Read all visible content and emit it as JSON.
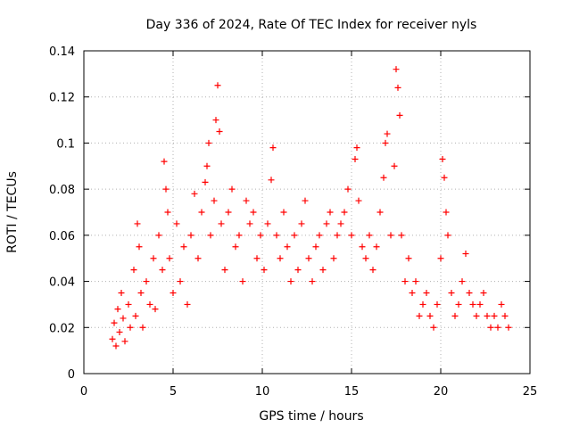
{
  "chart_data": {
    "type": "scatter",
    "title": "Day 336 of 2024, Rate Of TEC Index for receiver nyls",
    "xlabel": "GPS time / hours",
    "ylabel": "ROTI / TECUs",
    "xlim": [
      0,
      25
    ],
    "ylim": [
      0,
      0.14
    ],
    "xticks": [
      0,
      5,
      10,
      15,
      20,
      25
    ],
    "yticks": [
      0,
      0.02,
      0.04,
      0.06,
      0.08,
      0.1,
      0.12,
      0.14
    ],
    "xtick_labels": [
      "0",
      "5",
      "10",
      "15",
      "20",
      "25"
    ],
    "ytick_labels": [
      "0",
      "0.02",
      "0.04",
      "0.06",
      "0.08",
      "0.1",
      "0.12",
      "0.14"
    ],
    "grid": true,
    "marker": "+",
    "marker_color": "#ff0000",
    "series": [
      {
        "points": [
          [
            1.6,
            0.015
          ],
          [
            1.7,
            0.022
          ],
          [
            1.8,
            0.012
          ],
          [
            1.9,
            0.028
          ],
          [
            2.0,
            0.018
          ],
          [
            2.1,
            0.035
          ],
          [
            2.2,
            0.024
          ],
          [
            2.3,
            0.014
          ],
          [
            2.5,
            0.03
          ],
          [
            2.6,
            0.02
          ],
          [
            2.8,
            0.045
          ],
          [
            2.9,
            0.025
          ],
          [
            3.0,
            0.065
          ],
          [
            3.1,
            0.055
          ],
          [
            3.2,
            0.035
          ],
          [
            3.3,
            0.02
          ],
          [
            3.5,
            0.04
          ],
          [
            3.7,
            0.03
          ],
          [
            3.9,
            0.05
          ],
          [
            4.0,
            0.028
          ],
          [
            4.2,
            0.06
          ],
          [
            4.4,
            0.045
          ],
          [
            4.5,
            0.092
          ],
          [
            4.6,
            0.08
          ],
          [
            4.7,
            0.07
          ],
          [
            4.8,
            0.05
          ],
          [
            5.0,
            0.035
          ],
          [
            5.2,
            0.065
          ],
          [
            5.4,
            0.04
          ],
          [
            5.6,
            0.055
          ],
          [
            5.8,
            0.03
          ],
          [
            6.0,
            0.06
          ],
          [
            6.2,
            0.078
          ],
          [
            6.4,
            0.05
          ],
          [
            6.6,
            0.07
          ],
          [
            6.8,
            0.083
          ],
          [
            6.9,
            0.09
          ],
          [
            7.0,
            0.1
          ],
          [
            7.1,
            0.06
          ],
          [
            7.3,
            0.075
          ],
          [
            7.4,
            0.11
          ],
          [
            7.5,
            0.125
          ],
          [
            7.6,
            0.105
          ],
          [
            7.7,
            0.065
          ],
          [
            7.9,
            0.045
          ],
          [
            8.1,
            0.07
          ],
          [
            8.3,
            0.08
          ],
          [
            8.5,
            0.055
          ],
          [
            8.7,
            0.06
          ],
          [
            8.9,
            0.04
          ],
          [
            9.1,
            0.075
          ],
          [
            9.3,
            0.065
          ],
          [
            9.5,
            0.07
          ],
          [
            9.7,
            0.05
          ],
          [
            9.9,
            0.06
          ],
          [
            10.1,
            0.045
          ],
          [
            10.3,
            0.065
          ],
          [
            10.5,
            0.084
          ],
          [
            10.6,
            0.098
          ],
          [
            10.8,
            0.06
          ],
          [
            11.0,
            0.05
          ],
          [
            11.2,
            0.07
          ],
          [
            11.4,
            0.055
          ],
          [
            11.6,
            0.04
          ],
          [
            11.8,
            0.06
          ],
          [
            12.0,
            0.045
          ],
          [
            12.2,
            0.065
          ],
          [
            12.4,
            0.075
          ],
          [
            12.6,
            0.05
          ],
          [
            12.8,
            0.04
          ],
          [
            13.0,
            0.055
          ],
          [
            13.2,
            0.06
          ],
          [
            13.4,
            0.045
          ],
          [
            13.6,
            0.065
          ],
          [
            13.8,
            0.07
          ],
          [
            14.0,
            0.05
          ],
          [
            14.2,
            0.06
          ],
          [
            14.4,
            0.065
          ],
          [
            14.6,
            0.07
          ],
          [
            14.8,
            0.08
          ],
          [
            15.0,
            0.06
          ],
          [
            15.2,
            0.093
          ],
          [
            15.3,
            0.098
          ],
          [
            15.4,
            0.075
          ],
          [
            15.6,
            0.055
          ],
          [
            15.8,
            0.05
          ],
          [
            16.0,
            0.06
          ],
          [
            16.2,
            0.045
          ],
          [
            16.4,
            0.055
          ],
          [
            16.6,
            0.07
          ],
          [
            16.8,
            0.085
          ],
          [
            16.9,
            0.1
          ],
          [
            17.0,
            0.104
          ],
          [
            17.2,
            0.06
          ],
          [
            17.4,
            0.09
          ],
          [
            17.5,
            0.132
          ],
          [
            17.6,
            0.124
          ],
          [
            17.7,
            0.112
          ],
          [
            17.8,
            0.06
          ],
          [
            18.0,
            0.04
          ],
          [
            18.2,
            0.05
          ],
          [
            18.4,
            0.035
          ],
          [
            18.6,
            0.04
          ],
          [
            18.8,
            0.025
          ],
          [
            19.0,
            0.03
          ],
          [
            19.2,
            0.035
          ],
          [
            19.4,
            0.025
          ],
          [
            19.6,
            0.02
          ],
          [
            19.8,
            0.03
          ],
          [
            20.0,
            0.05
          ],
          [
            20.1,
            0.093
          ],
          [
            20.2,
            0.085
          ],
          [
            20.3,
            0.07
          ],
          [
            20.4,
            0.06
          ],
          [
            20.6,
            0.035
          ],
          [
            20.8,
            0.025
          ],
          [
            21.0,
            0.03
          ],
          [
            21.2,
            0.04
          ],
          [
            21.4,
            0.052
          ],
          [
            21.6,
            0.035
          ],
          [
            21.8,
            0.03
          ],
          [
            22.0,
            0.025
          ],
          [
            22.2,
            0.03
          ],
          [
            22.4,
            0.035
          ],
          [
            22.6,
            0.025
          ],
          [
            22.8,
            0.02
          ],
          [
            23.0,
            0.025
          ],
          [
            23.2,
            0.02
          ],
          [
            23.4,
            0.03
          ],
          [
            23.6,
            0.025
          ],
          [
            23.8,
            0.02
          ]
        ]
      }
    ]
  }
}
